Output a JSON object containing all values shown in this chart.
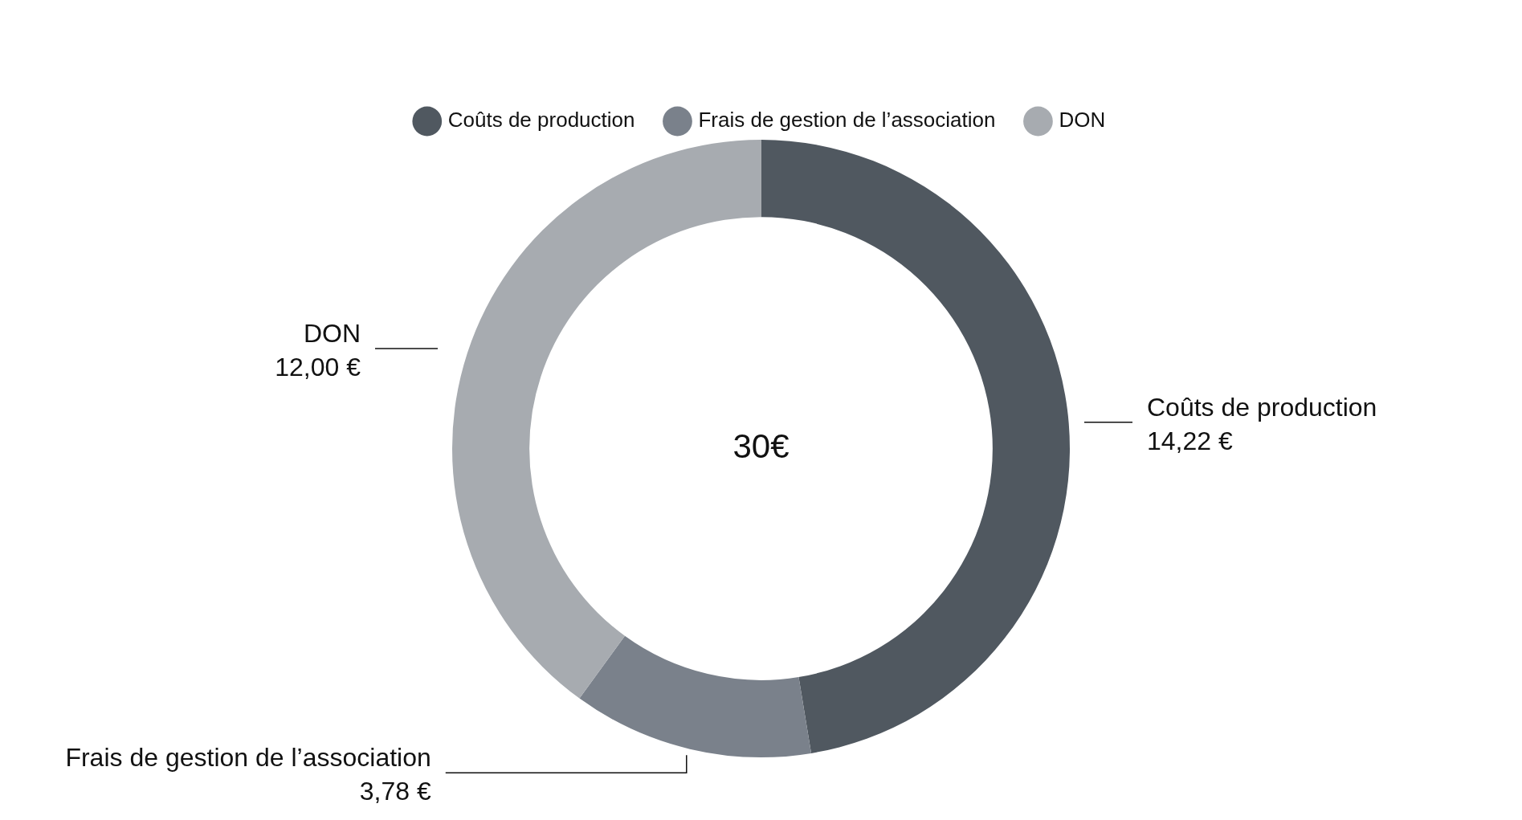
{
  "chart_data": {
    "type": "donut",
    "categories": [
      "Coûts de production",
      "Frais de gestion de l’association",
      "DON"
    ],
    "values": [
      14.22,
      3.78,
      12.0
    ],
    "colors": [
      "#505860",
      "#7a818b",
      "#a7abb0"
    ],
    "value_labels": [
      "14,22 €",
      "3,78 €",
      "12,00 €"
    ],
    "annotations": [
      "30€"
    ],
    "legend": "top"
  }
}
